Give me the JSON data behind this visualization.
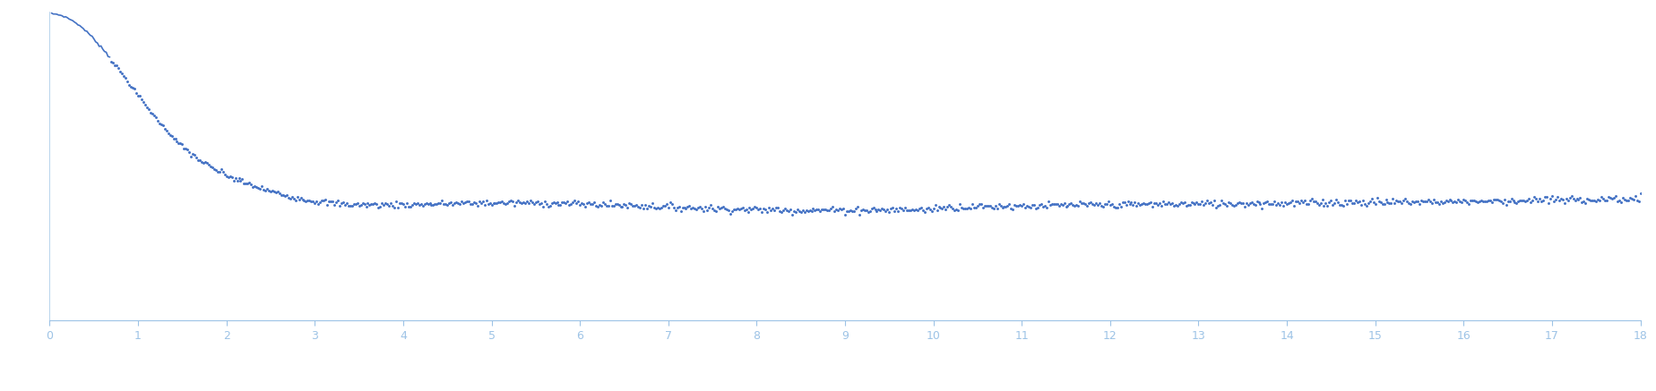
{
  "title": "",
  "xlabel": "",
  "ylabel": "",
  "x_min": 0,
  "x_max": 18,
  "x_ticks": [
    0,
    1,
    2,
    3,
    4,
    5,
    6,
    7,
    8,
    9,
    10,
    11,
    12,
    13,
    14,
    15,
    16,
    17,
    18
  ],
  "line_color": "#4472C4",
  "dot_size": 2.2,
  "bg_color": "#ffffff",
  "figsize": [
    18.49,
    4.37
  ],
  "dpi": 100,
  "spine_color": "#9DC3E6",
  "tick_color": "#9DC3E6",
  "tick_label_color": "#9DC3E6",
  "line_cutoff_q": 0.7,
  "y_min": -0.55,
  "y_max": 1.05
}
